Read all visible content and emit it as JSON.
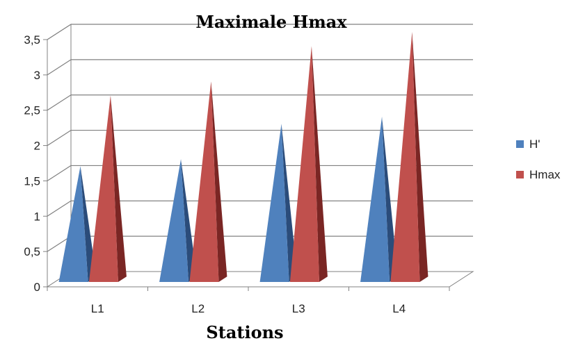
{
  "chart_data": {
    "type": "bar",
    "style": "3d-pyramid",
    "title": "Maximale Hmax",
    "xlabel": "Stations",
    "ylabel": "",
    "categories": [
      "L1",
      "L2",
      "L3",
      "L4"
    ],
    "series": [
      {
        "name": "H'",
        "values": [
          1.6,
          1.7,
          2.2,
          2.3
        ],
        "color": "#4f81bd",
        "shade": "#2b4c7a"
      },
      {
        "name": "Hmax",
        "values": [
          2.6,
          2.8,
          3.3,
          3.5
        ],
        "color": "#c0504d",
        "shade": "#7a2624"
      }
    ],
    "ylim": [
      0,
      3.5
    ],
    "yticks": [
      "0",
      "0,5",
      "1",
      "1,5",
      "2",
      "2,5",
      "3",
      "3,5"
    ],
    "grid": true,
    "legend_position": "right"
  }
}
